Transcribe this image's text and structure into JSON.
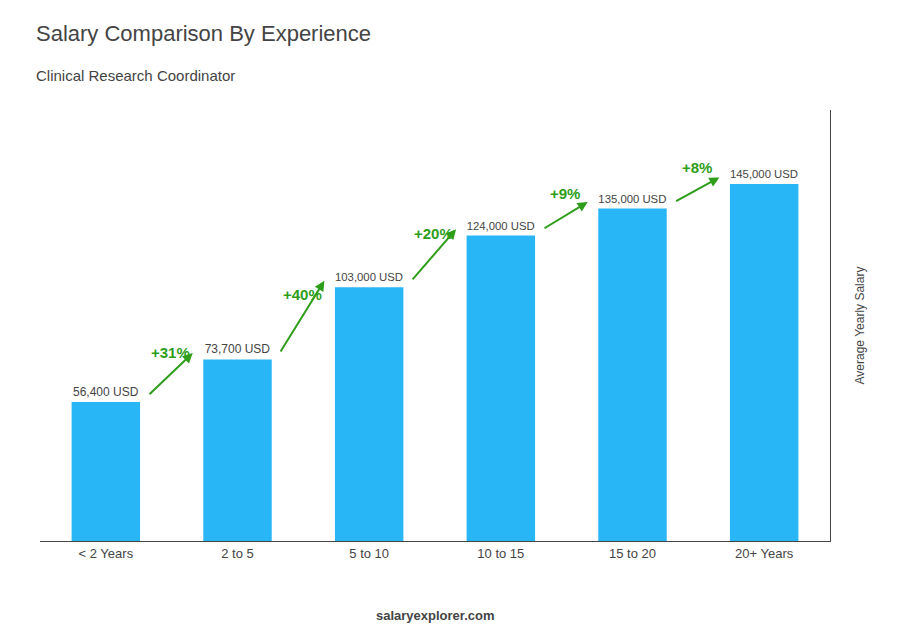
{
  "chart_data": {
    "type": "bar",
    "title": "Salary Comparison By Experience",
    "subtitle": "Clinical Research Coordinator",
    "categories": [
      "< 2 Years",
      "2 to 5",
      "5 to 10",
      "10 to 15",
      "15 to 20",
      "20+ Years"
    ],
    "values": [
      56400,
      73700,
      103000,
      124000,
      135000,
      145000
    ],
    "value_labels": [
      "56,400 USD",
      "73,700 USD",
      "103,000 USD",
      "124,000 USD",
      "135,000 USD",
      "145,000 USD"
    ],
    "data_labels": true,
    "color": "#29b6f6",
    "ylabel": "Average Yearly Salary",
    "ylim": [
      0,
      175000
    ],
    "tick_labels": "x",
    "grid": false,
    "annotations": [
      "+31%",
      "+40%",
      "+20%",
      "+9%",
      "+8%"
    ],
    "footer": "salaryexplorer.com"
  }
}
